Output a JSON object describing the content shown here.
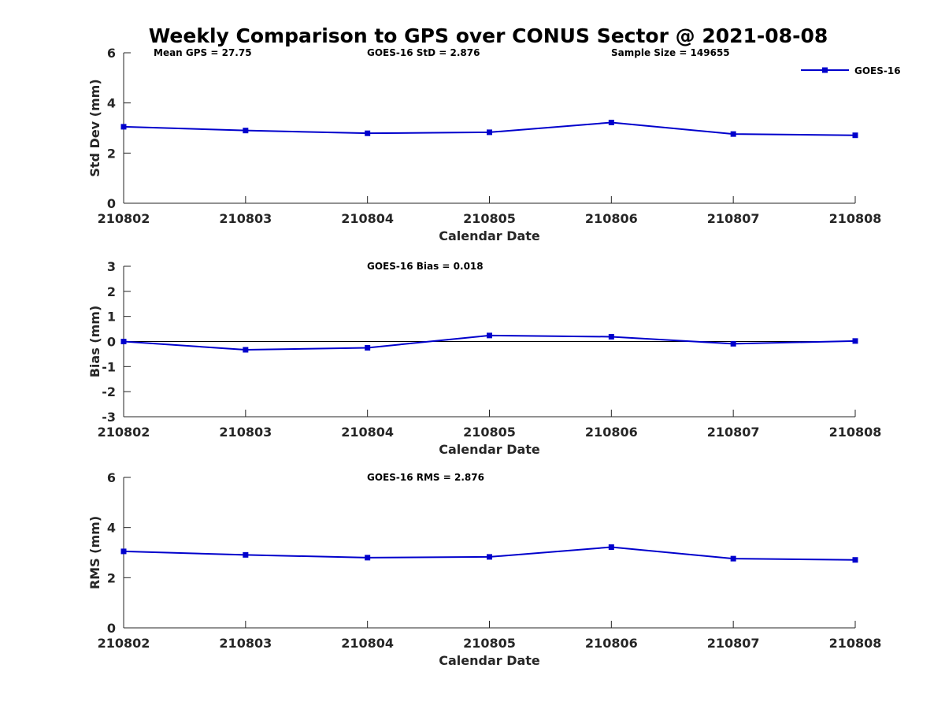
{
  "chart_data": [
    {
      "type": "line",
      "title": "Weekly Comparison to GPS over CONUS Sector @ 2021-08-08",
      "categories": [
        "210802",
        "210803",
        "210804",
        "210805",
        "210806",
        "210807",
        "210808"
      ],
      "series": [
        {
          "name": "GOES-16",
          "values": [
            3.05,
            2.9,
            2.79,
            2.83,
            3.22,
            2.76,
            2.71
          ],
          "color": "#0000cc"
        }
      ],
      "xlabel": "Calendar Date",
      "ylabel": "Std Dev (mm)",
      "ylim": [
        0,
        6
      ],
      "yticks": [
        0,
        2,
        4,
        6
      ],
      "annotations": [
        "Mean GPS = 27.75",
        "GOES-16 StD = 2.876",
        "Sample Size = 149655"
      ],
      "legend": {
        "label": "GOES-16",
        "placement": "top-right"
      }
    },
    {
      "type": "line",
      "categories": [
        "210802",
        "210803",
        "210804",
        "210805",
        "210806",
        "210807",
        "210808"
      ],
      "series": [
        {
          "name": "GOES-16",
          "values": [
            0.0,
            -0.33,
            -0.25,
            0.24,
            0.19,
            -0.09,
            0.02
          ],
          "color": "#0000cc"
        }
      ],
      "xlabel": "Calendar Date",
      "ylabel": "Bias (mm)",
      "ylim": [
        -3,
        3
      ],
      "yticks": [
        -3,
        -2,
        -1,
        0,
        1,
        2,
        3
      ],
      "zero_line": true,
      "annotations": [
        "GOES-16 Bias  = 0.018"
      ]
    },
    {
      "type": "line",
      "categories": [
        "210802",
        "210803",
        "210804",
        "210805",
        "210806",
        "210807",
        "210808"
      ],
      "series": [
        {
          "name": "GOES-16",
          "values": [
            3.05,
            2.91,
            2.8,
            2.83,
            3.22,
            2.76,
            2.71
          ],
          "color": "#0000cc"
        }
      ],
      "xlabel": "Calendar Date",
      "ylabel": "RMS (mm)",
      "ylim": [
        0,
        6
      ],
      "yticks": [
        0,
        2,
        4,
        6
      ],
      "annotations": [
        "GOES-16 RMS = 2.876"
      ]
    }
  ]
}
